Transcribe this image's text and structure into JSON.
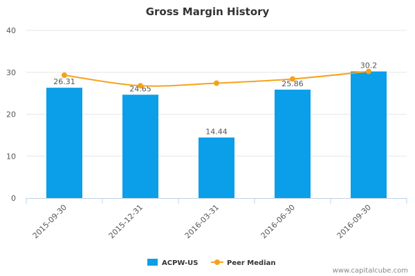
{
  "chart_data": {
    "type": "bar",
    "title": "Gross Margin History",
    "categories": [
      "2015-09-30",
      "2015-12-31",
      "2016-03-31",
      "2016-06-30",
      "2016-09-30"
    ],
    "series": [
      {
        "name": "ACPW-US",
        "type": "bar",
        "values": [
          26.31,
          24.65,
          14.44,
          25.86,
          30.2
        ],
        "labels": [
          "26.31",
          "24.65",
          "14.44",
          "25.86",
          "30.2"
        ],
        "color": "#0a9fe8"
      },
      {
        "name": "Peer Median",
        "type": "line",
        "values": [
          29.3,
          26.8,
          27.4,
          28.4,
          30.2
        ],
        "color": "#f5a21b"
      }
    ],
    "y_ticks": [
      "0",
      "10",
      "20",
      "30",
      "40"
    ],
    "ylim": [
      0,
      40
    ],
    "grid": true,
    "legend_position": "bottom"
  },
  "credit": "www.capitalcube.com"
}
